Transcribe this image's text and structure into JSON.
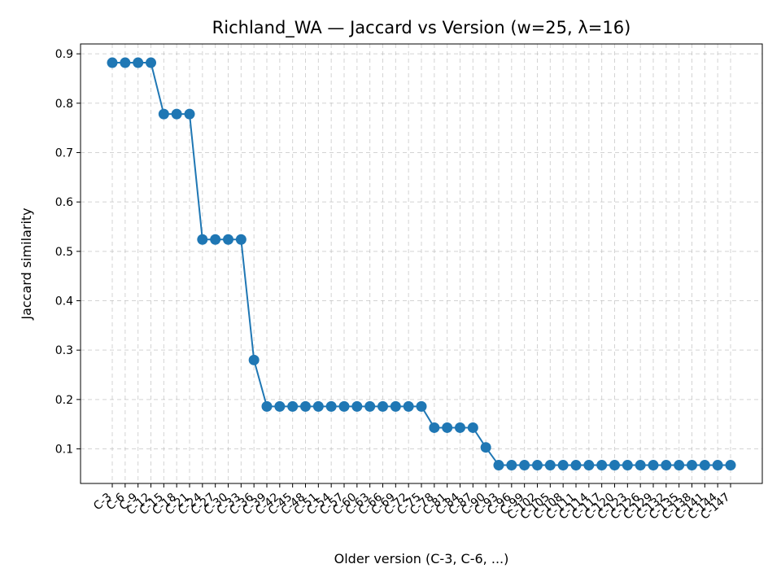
{
  "chart_data": {
    "type": "line",
    "title": "Richland_WA — Jaccard vs Version (w=25, λ=16)",
    "xlabel": "Older version (C-3, C-6, ...)",
    "ylabel": "Jaccard similarity",
    "ylim": [
      0.03,
      0.92
    ],
    "yticks": [
      0.1,
      0.2,
      0.3,
      0.4,
      0.5,
      0.6,
      0.7,
      0.8,
      0.9
    ],
    "grid": true,
    "color": "#1f77b4",
    "categories": [
      "C-3",
      "C-6",
      "C-9",
      "C-12",
      "C-15",
      "C-18",
      "C-21",
      "C-24",
      "C-27",
      "C-30",
      "C-33",
      "C-36",
      "C-39",
      "C-42",
      "C-45",
      "C-48",
      "C-51",
      "C-54",
      "C-57",
      "C-60",
      "C-63",
      "C-66",
      "C-69",
      "C-72",
      "C-75",
      "C-78",
      "C-81",
      "C-84",
      "C-87",
      "C-90",
      "C-93",
      "C-96",
      "C-99",
      "C-102",
      "C-105",
      "C-108",
      "C-111",
      "C-114",
      "C-117",
      "C-120",
      "C-123",
      "C-126",
      "C-129",
      "C-132",
      "C-135",
      "C-138",
      "C-141",
      "C-144",
      "C-147"
    ],
    "values": [
      0.882,
      0.882,
      0.882,
      0.882,
      0.778,
      0.778,
      0.778,
      0.524,
      0.524,
      0.524,
      0.524,
      0.28,
      0.186,
      0.186,
      0.186,
      0.186,
      0.186,
      0.186,
      0.186,
      0.186,
      0.186,
      0.186,
      0.186,
      0.186,
      0.186,
      0.143,
      0.143,
      0.143,
      0.143,
      0.103,
      0.067,
      0.067,
      0.067,
      0.067,
      0.067,
      0.067,
      0.067,
      0.067,
      0.067,
      0.067,
      0.067,
      0.067,
      0.067,
      0.067,
      0.067,
      0.067,
      0.067,
      0.067,
      0.067
    ]
  }
}
